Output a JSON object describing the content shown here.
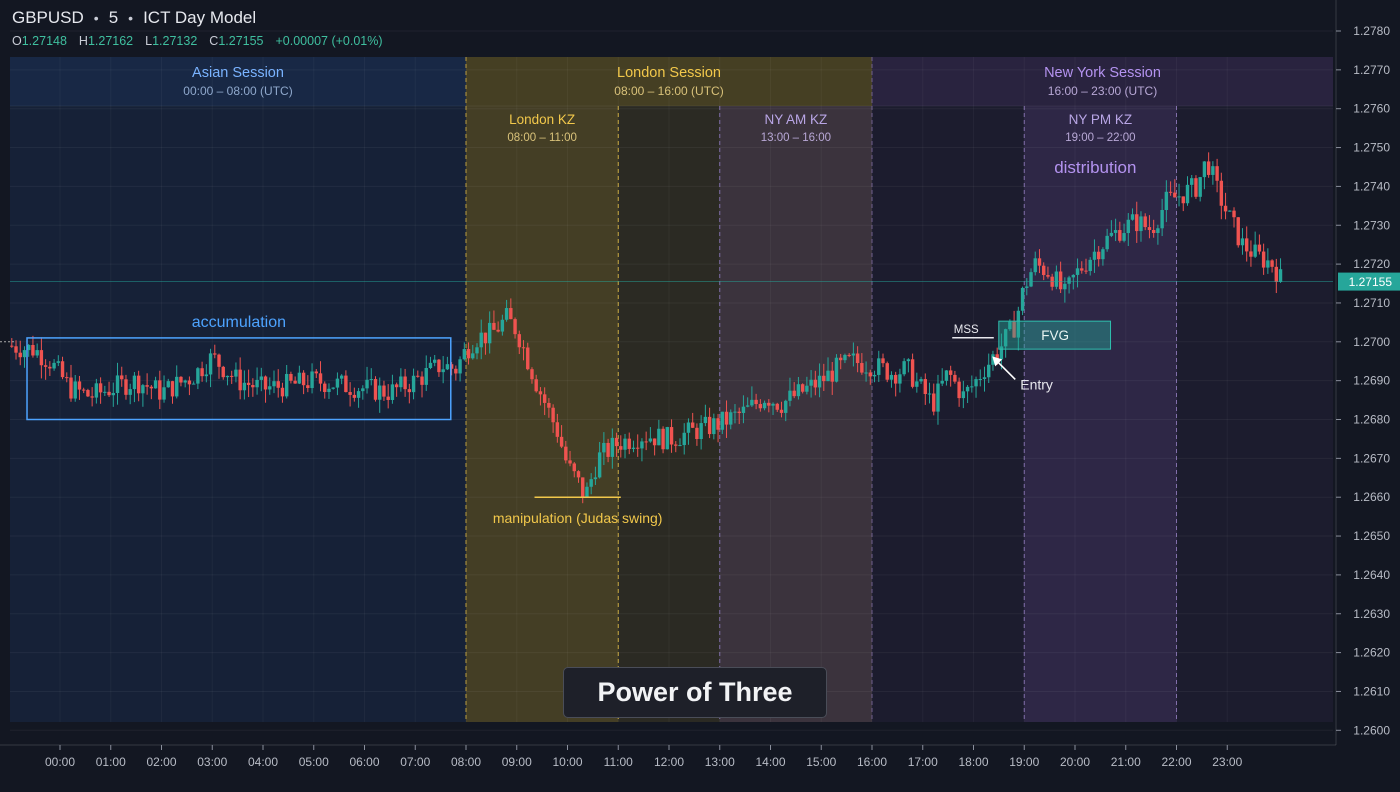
{
  "header": {
    "symbol": "GBPUSD",
    "interval": "5",
    "model": "ICT Day Model",
    "ohlc": {
      "o_label": "O",
      "o": "1.27148",
      "h_label": "H",
      "h": "1.27162",
      "l_label": "L",
      "l": "1.27132",
      "c_label": "C",
      "c": "1.27155",
      "change": "+0.00007 (+0.01%)"
    }
  },
  "sessions": [
    {
      "name": "Asian Session",
      "time": "00:00 – 08:00 (UTC)",
      "color": "#7ab3ff"
    },
    {
      "name": "London Session",
      "time": "08:00 – 16:00 (UTC)",
      "color": "#f2c84b"
    },
    {
      "name": "New York Session",
      "time": "16:00 – 23:00 (UTC)",
      "color": "#b493f0"
    }
  ],
  "killzones": [
    {
      "name": "London KZ",
      "time": "08:00 – 11:00",
      "color": "#f2c84b"
    },
    {
      "name": "NY AM KZ",
      "time": "13:00 – 16:00",
      "color": "#b9a6e6"
    },
    {
      "name": "NY PM KZ",
      "time": "19:00 – 22:00",
      "color": "#b9a6e6"
    }
  ],
  "annotations": {
    "accumulation": "accumulation",
    "manipulation": "manipulation (Judas swing)",
    "distribution": "distribution",
    "mss": "MSS",
    "fvg": "FVG",
    "entry": "Entry",
    "power_of_three": "Power of Three"
  },
  "colors": {
    "up": "#26a69a",
    "down": "#ef5350",
    "accumulation": "#4da3ff",
    "manipulation": "#f2c84b",
    "distribution": "#b493f0",
    "fvg": "#26a69a",
    "price_label_bg": "#26a69a"
  },
  "chart_data": {
    "type": "candlestick",
    "title": "GBPUSD • 5 • ICT Day Model",
    "ylim": [
      1.2597,
      1.2783
    ],
    "ytick_labels": [
      "1.2600",
      "1.2610",
      "1.2620",
      "1.2630",
      "1.2640",
      "1.2650",
      "1.2660",
      "1.2670",
      "1.2680",
      "1.2690",
      "1.2700",
      "1.2710",
      "1.2720",
      "1.2730",
      "1.2740",
      "1.2750",
      "1.2760",
      "1.2770",
      "1.2780"
    ],
    "xtick_labels": [
      "00:00",
      "01:00",
      "02:00",
      "03:00",
      "04:00",
      "05:00",
      "06:00",
      "07:00",
      "08:00",
      "09:00",
      "10:00",
      "11:00",
      "12:00",
      "13:00",
      "14:00",
      "15:00",
      "16:00",
      "17:00",
      "18:00",
      "19:00",
      "20:00",
      "21:00",
      "22:00",
      "23:00"
    ],
    "last_price": "1.27155",
    "price_path_hours": [
      -1,
      -0.5,
      -0.2,
      0.2,
      0.6,
      1,
      1.5,
      2,
      2.6,
      3,
      3.5,
      4,
      4.6,
      5,
      5.5,
      6,
      6.5,
      7,
      7.5,
      7.8,
      8,
      8.2,
      8.5,
      8.8,
      9.0,
      9.2,
      9.4,
      9.6,
      9.8,
      10.0,
      10.2,
      10.35,
      10.6,
      11,
      11.5,
      12,
      12.5,
      13,
      13.5,
      13.9,
      14.2,
      14.6,
      15,
      15.3,
      15.6,
      16,
      16.4,
      16.7,
      16.9,
      17.2,
      17.5,
      17.8,
      18.0,
      18.2,
      18.5,
      18.8,
      19.0,
      19.2,
      19.5,
      19.8,
      20.0,
      20.3,
      20.6,
      20.9,
      21.2,
      21.5,
      21.8,
      22.1,
      22.4,
      22.6,
      22.8,
      23.0,
      23.3,
      23.6,
      23.9,
      24.1
    ],
    "price_path_values": [
      1.2699,
      1.2698,
      1.2695,
      1.2688,
      1.2686,
      1.2688,
      1.269,
      1.2687,
      1.2691,
      1.2696,
      1.269,
      1.2688,
      1.2689,
      1.269,
      1.2689,
      1.2688,
      1.2687,
      1.269,
      1.2694,
      1.2693,
      1.2698,
      1.2701,
      1.2702,
      1.2706,
      1.2703,
      1.2696,
      1.2689,
      1.2683,
      1.2677,
      1.2668,
      1.2664,
      1.266,
      1.267,
      1.2674,
      1.2676,
      1.2675,
      1.2677,
      1.2679,
      1.2682,
      1.2686,
      1.2684,
      1.2687,
      1.269,
      1.2693,
      1.2695,
      1.2694,
      1.2692,
      1.2693,
      1.2689,
      1.2684,
      1.2692,
      1.2686,
      1.2689,
      1.2693,
      1.2698,
      1.2704,
      1.2714,
      1.272,
      1.2718,
      1.2712,
      1.2717,
      1.2722,
      1.2726,
      1.2729,
      1.2731,
      1.2729,
      1.2736,
      1.2738,
      1.274,
      1.2747,
      1.2739,
      1.2733,
      1.2725,
      1.2722,
      1.272,
      1.2715
    ],
    "session_hours": [
      [
        0,
        8
      ],
      [
        8,
        16
      ],
      [
        16,
        23
      ]
    ],
    "killzone_hours": [
      [
        8,
        11
      ],
      [
        13,
        16
      ],
      [
        19,
        22
      ]
    ],
    "accumulation_box": {
      "hours": [
        -0.65,
        7.7
      ],
      "prices": [
        1.268,
        1.2701
      ]
    },
    "manipulation_low": {
      "hours": [
        9.35,
        11.05
      ],
      "price": 1.266
    },
    "mss": {
      "hours": [
        16.3,
        18.4
      ],
      "price": 1.27
    },
    "fvg": {
      "hours": [
        18.4,
        20.7
      ],
      "prices": [
        1.26975,
        1.27048
      ]
    },
    "entry_point": {
      "hour": 18.35,
      "price": 1.26965
    }
  }
}
